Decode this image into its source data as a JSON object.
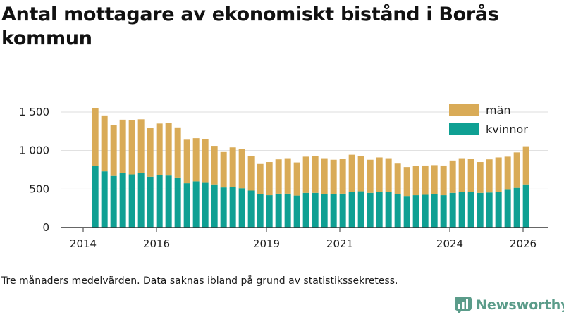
{
  "title": "Antal mottagare av ekonomiskt bistånd i Borås kommun",
  "footnote": "Tre månaders medelvärden. Data saknas ibland på grund av statistikssekretess.",
  "brand": {
    "name": "Newsworthy",
    "color": "#5b9c8a"
  },
  "colors": {
    "men": "#d9ab57",
    "women": "#0fa093",
    "grid": "#dddddd",
    "axis": "#333333"
  },
  "chart_data": {
    "type": "bar",
    "stacked": true,
    "title": "Antal mottagare av ekonomiskt bistånd i Borås kommun",
    "xlabel": "",
    "ylabel": "",
    "ylim": [
      0,
      1600
    ],
    "y_ticks": [
      0,
      500,
      1000,
      1500
    ],
    "y_tick_labels": [
      "0",
      "500",
      "1 000",
      "1 500"
    ],
    "x_range": [
      2014.0,
      2026.4
    ],
    "x_ticks": [
      2014,
      2016,
      2019,
      2021,
      2024,
      2026
    ],
    "x_tick_labels": [
      "2014",
      "2016",
      "2019",
      "2021",
      "2024",
      "2026"
    ],
    "legend": {
      "position": "top-right",
      "entries": [
        "män",
        "kvinnor"
      ]
    },
    "x": [
      2014.33,
      2014.58,
      2014.83,
      2015.08,
      2015.33,
      2015.58,
      2015.83,
      2016.08,
      2016.33,
      2016.58,
      2016.83,
      2017.08,
      2017.33,
      2017.58,
      2017.83,
      2018.08,
      2018.33,
      2018.58,
      2018.83,
      2019.08,
      2019.33,
      2019.58,
      2019.83,
      2020.08,
      2020.33,
      2020.58,
      2020.83,
      2021.08,
      2021.33,
      2021.58,
      2021.83,
      2022.08,
      2022.33,
      2022.58,
      2022.83,
      2023.08,
      2023.33,
      2023.58,
      2023.83,
      2024.08,
      2024.33,
      2024.58,
      2024.83,
      2025.08,
      2025.33,
      2025.58,
      2025.83,
      2026.08
    ],
    "series": [
      {
        "name": "kvinnor",
        "values": [
          800,
          730,
          670,
          710,
          690,
          705,
          660,
          680,
          675,
          650,
          575,
          600,
          580,
          560,
          520,
          530,
          510,
          480,
          430,
          420,
          440,
          440,
          415,
          450,
          450,
          430,
          430,
          440,
          465,
          470,
          450,
          460,
          460,
          430,
          410,
          420,
          425,
          430,
          420,
          450,
          460,
          460,
          450,
          455,
          465,
          490,
          515,
          560
        ]
      },
      {
        "name": "män",
        "values": [
          750,
          725,
          660,
          690,
          700,
          700,
          630,
          670,
          680,
          650,
          565,
          560,
          570,
          500,
          460,
          510,
          510,
          450,
          395,
          430,
          445,
          460,
          430,
          470,
          480,
          470,
          450,
          450,
          480,
          460,
          430,
          450,
          440,
          400,
          375,
          380,
          380,
          380,
          385,
          420,
          440,
          430,
          400,
          430,
          445,
          430,
          460,
          495
        ]
      }
    ]
  }
}
